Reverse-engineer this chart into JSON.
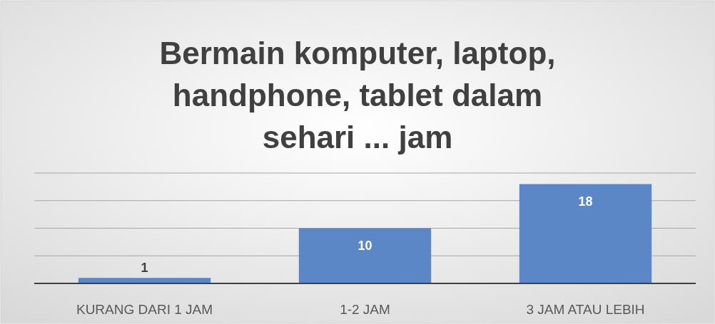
{
  "chart_data": {
    "type": "bar",
    "title": "Bermain komputer, laptop, handphone, tablet dalam sehari ... jam",
    "categories": [
      "KURANG DARI 1 JAM",
      "1-2 JAM",
      "3 JAM ATAU LEBIH"
    ],
    "values": [
      1,
      10,
      18
    ],
    "color": "#5b87c6",
    "ylim": [
      0,
      20
    ],
    "yticks": [
      {
        "value": 0,
        "label": null
      },
      {
        "value": 5,
        "label": null
      },
      {
        "value": 10,
        "label": null
      },
      {
        "value": 15,
        "label": null
      },
      {
        "value": 20,
        "label": null
      }
    ],
    "grid": "y",
    "data_labels": true,
    "tick_labels": "x"
  }
}
